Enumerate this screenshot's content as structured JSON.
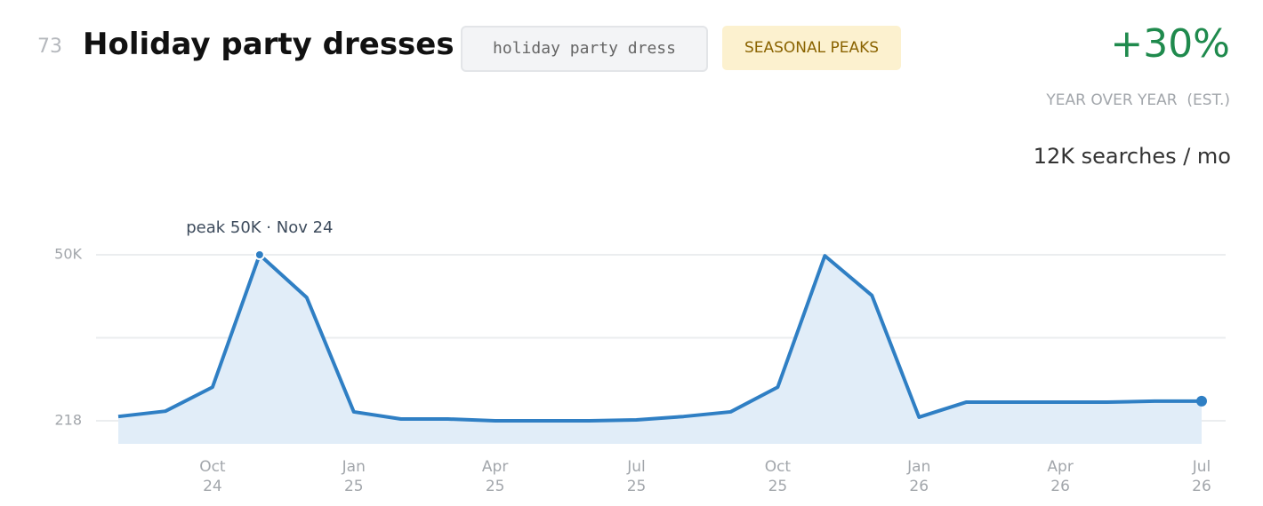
{
  "header": {
    "rank": "73",
    "title": "Holiday party dresses",
    "keyword": "holiday party dress",
    "badge": "SEASONAL PEAKS",
    "growth": "+30%",
    "growth_label": "YEAR OVER YEAR  (EST.)",
    "volume": "12K searches / mo"
  },
  "chart_data": {
    "type": "line",
    "annotation": "peak 50K · Nov 24",
    "categories": [
      null,
      null,
      "Oct 24",
      null,
      null,
      "Jan 25",
      null,
      null,
      "Apr 25",
      null,
      null,
      "Jul 25",
      null,
      null,
      "Oct 25",
      null,
      null,
      "Jan 26",
      null,
      null,
      "Apr 26",
      null,
      null,
      "Jul 26"
    ],
    "values": [
      1500,
      3100,
      10300,
      50000,
      37200,
      2900,
      750,
      750,
      218,
      218,
      218,
      480,
      1500,
      2900,
      10300,
      49700,
      37800,
      1300,
      5800,
      5800,
      5800,
      5800,
      6100,
      6100
    ],
    "color": "#2f7fc4",
    "fill": "#e1edf8",
    "ylim": [
      -6700,
      50000
    ],
    "yticks": [
      218,
      {
        "value": 50000,
        "label": "50K"
      }
    ],
    "grid_values": [
      218,
      25109,
      50000
    ],
    "grid": true
  }
}
